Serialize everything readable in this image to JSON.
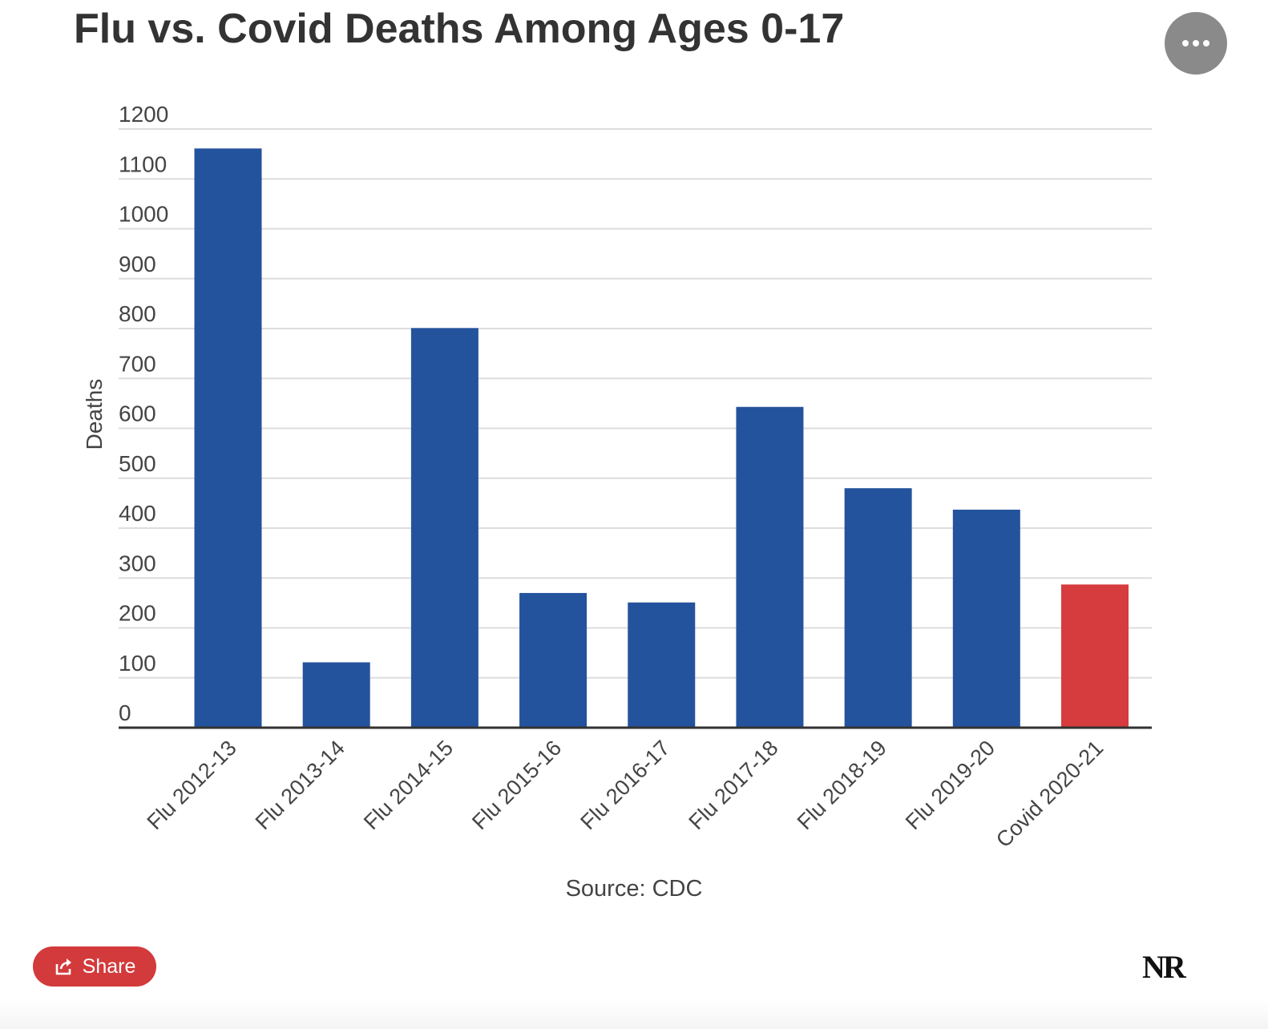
{
  "header": {
    "title": "Flu vs. Covid Deaths Among Ages 0-17",
    "menu_icon": "ellipsis-icon"
  },
  "chart_data": {
    "type": "bar",
    "title": "Flu vs. Covid Deaths Among Ages 0-17",
    "xlabel": "",
    "ylabel": "Deaths",
    "ylim": [
      0,
      1200
    ],
    "yticks": [
      0,
      100,
      200,
      300,
      400,
      500,
      600,
      700,
      800,
      900,
      1000,
      1100,
      1200
    ],
    "grid": true,
    "categories": [
      "Flu 2012-13",
      "Flu 2013-14",
      "Flu 2014-15",
      "Flu 2015-16",
      "Flu 2016-17",
      "Flu 2017-18",
      "Flu 2018-19",
      "Flu 2019-20",
      "Covid 2020-21"
    ],
    "values": [
      1161,
      131,
      801,
      270,
      251,
      643,
      480,
      437,
      287
    ],
    "colors": [
      "#24539d",
      "#24539d",
      "#24539d",
      "#24539d",
      "#24539d",
      "#24539d",
      "#24539d",
      "#24539d",
      "#d63b3d"
    ]
  },
  "footer": {
    "source": "Source: CDC",
    "share_label": "Share",
    "share_icon": "share-icon",
    "logo_text": "NR"
  },
  "colors": {
    "flu": "#24539d",
    "covid": "#d63b3d",
    "share_bg": "#d33a3b",
    "menu_bg": "#8a8a8a"
  }
}
